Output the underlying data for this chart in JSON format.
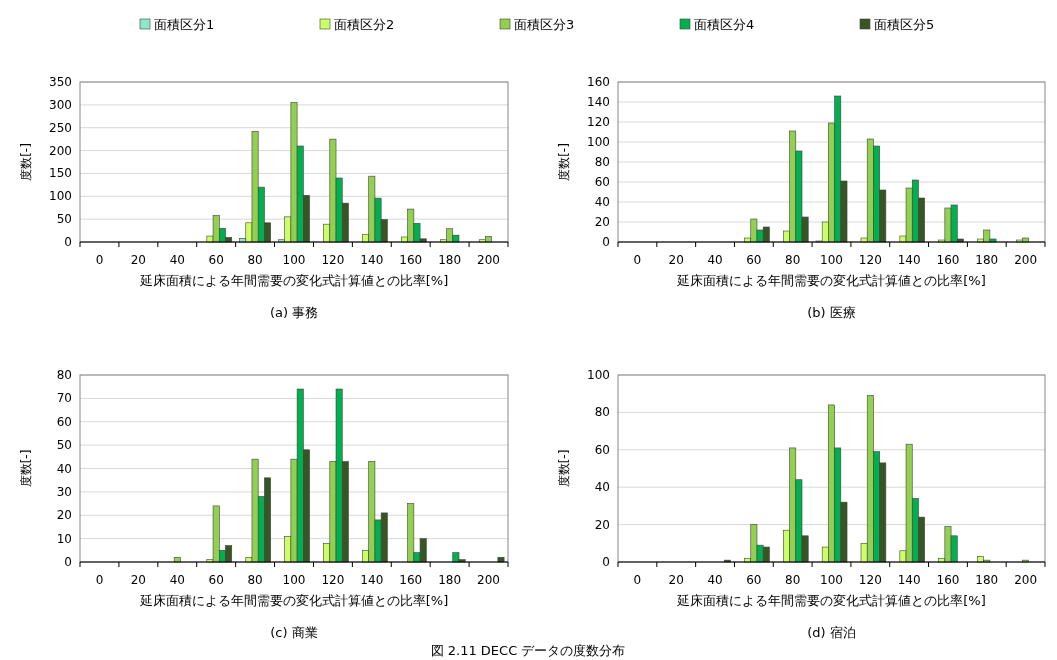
{
  "chart_data": [
    {
      "type": "bar",
      "title": "(a)  事務",
      "xlabel": "延床面積による年間需要の変化式計算値との比率[%]",
      "ylabel": "度数[-]",
      "categories": [
        "0",
        "20",
        "40",
        "60",
        "80",
        "100",
        "120",
        "140",
        "160",
        "180",
        "200"
      ],
      "ylim": [
        0,
        350
      ],
      "yticks": [
        0,
        50,
        100,
        150,
        200,
        250,
        300,
        350
      ],
      "grid": "y",
      "legend": "top",
      "series": [
        {
          "name": "面積区分1",
          "color": "#8fe6cc",
          "values": [
            0,
            0,
            0,
            0,
            8,
            5,
            null,
            null,
            null,
            0,
            0
          ]
        },
        {
          "name": "面積区分2",
          "color": "#ccff66",
          "values": [
            0,
            0,
            0,
            13,
            42,
            55,
            39,
            16,
            11,
            5,
            5
          ]
        },
        {
          "name": "面積区分3",
          "color": "#92d050",
          "values": [
            0,
            0,
            0,
            58,
            242,
            305,
            225,
            144,
            72,
            29,
            12
          ]
        },
        {
          "name": "面積区分4",
          "color": "#00b050",
          "values": [
            0,
            0,
            0,
            30,
            120,
            210,
            140,
            96,
            41,
            15,
            0
          ]
        },
        {
          "name": "面積区分5",
          "color": "#375623",
          "values": [
            0,
            0,
            0,
            10,
            42,
            102,
            85,
            49,
            7,
            0,
            0
          ]
        }
      ]
    },
    {
      "type": "bar",
      "title": "(b)  医療",
      "xlabel": "延床面積による年間需要の変化式計算値との比率[%]",
      "ylabel": "度数[-]",
      "categories": [
        "0",
        "20",
        "40",
        "60",
        "80",
        "100",
        "120",
        "140",
        "160",
        "180",
        "200"
      ],
      "ylim": [
        0,
        160
      ],
      "yticks": [
        0,
        20,
        40,
        60,
        80,
        100,
        120,
        140,
        160
      ],
      "grid": "y",
      "series": [
        {
          "color": "#8fe6cc",
          "values": [
            0,
            0,
            0,
            0,
            0,
            1,
            0,
            0,
            0,
            0,
            0
          ]
        },
        {
          "color": "#ccff66",
          "values": [
            0,
            0,
            0,
            4,
            11,
            20,
            4,
            6,
            2,
            3,
            2
          ]
        },
        {
          "color": "#92d050",
          "values": [
            0,
            0,
            0,
            23,
            111,
            119,
            103,
            54,
            34,
            12,
            4
          ]
        },
        {
          "color": "#00b050",
          "values": [
            0,
            0,
            0,
            12,
            91,
            146,
            96,
            62,
            37,
            3,
            0
          ]
        },
        {
          "color": "#375623",
          "values": [
            0,
            0,
            0,
            15,
            25,
            61,
            52,
            44,
            3,
            0,
            0
          ]
        }
      ]
    },
    {
      "type": "bar",
      "title": "(c)  商業",
      "xlabel": "延床面積による年間需要の変化式計算値との比率[%]",
      "ylabel": "度数[-]",
      "categories": [
        "0",
        "20",
        "40",
        "60",
        "80",
        "100",
        "120",
        "140",
        "160",
        "180",
        "200"
      ],
      "ylim": [
        0,
        80
      ],
      "yticks": [
        0,
        10,
        20,
        30,
        40,
        50,
        60,
        70,
        80
      ],
      "grid": "y",
      "series": [
        {
          "color": "#8fe6cc",
          "values": [
            0,
            0,
            0,
            0,
            0,
            0,
            0,
            0,
            0,
            0,
            0
          ]
        },
        {
          "color": "#ccff66",
          "values": [
            0,
            0,
            0,
            1,
            2,
            11,
            8,
            5,
            0,
            0,
            0
          ]
        },
        {
          "color": "#92d050",
          "values": [
            0,
            0,
            2,
            24,
            44,
            44,
            43,
            43,
            25,
            0,
            0
          ]
        },
        {
          "color": "#00b050",
          "values": [
            0,
            0,
            0,
            5,
            28,
            74,
            74,
            18,
            4,
            4,
            0
          ]
        },
        {
          "color": "#375623",
          "values": [
            0,
            0,
            0,
            7,
            36,
            48,
            43,
            21,
            10,
            1,
            2
          ]
        }
      ]
    },
    {
      "type": "bar",
      "title": "(d)  宿泊",
      "xlabel": "延床面積による年間需要の変化式計算値との比率[%]",
      "ylabel": "度数[-]",
      "categories": [
        "0",
        "20",
        "40",
        "60",
        "80",
        "100",
        "120",
        "140",
        "160",
        "180",
        "200"
      ],
      "ylim": [
        0,
        100
      ],
      "yticks": [
        0,
        20,
        40,
        60,
        80,
        100
      ],
      "grid": "y",
      "annotations": [
        "図  2.11 DECC データの度数分布"
      ],
      "series": [
        {
          "color": "#8fe6cc",
          "values": [
            0,
            0,
            0,
            0,
            0,
            0,
            0,
            0,
            0,
            0,
            0
          ]
        },
        {
          "color": "#ccff66",
          "values": [
            0,
            0,
            0,
            2,
            17,
            8,
            10,
            6,
            2,
            3,
            0
          ]
        },
        {
          "color": "#92d050",
          "values": [
            0,
            0,
            0,
            20,
            61,
            84,
            89,
            63,
            19,
            1,
            1
          ]
        },
        {
          "color": "#00b050",
          "values": [
            0,
            0,
            0,
            9,
            44,
            61,
            59,
            34,
            14,
            0,
            0
          ]
        },
        {
          "color": "#375623",
          "values": [
            0,
            0,
            1,
            8,
            14,
            32,
            53,
            24,
            0,
            0,
            0
          ]
        }
      ]
    }
  ]
}
